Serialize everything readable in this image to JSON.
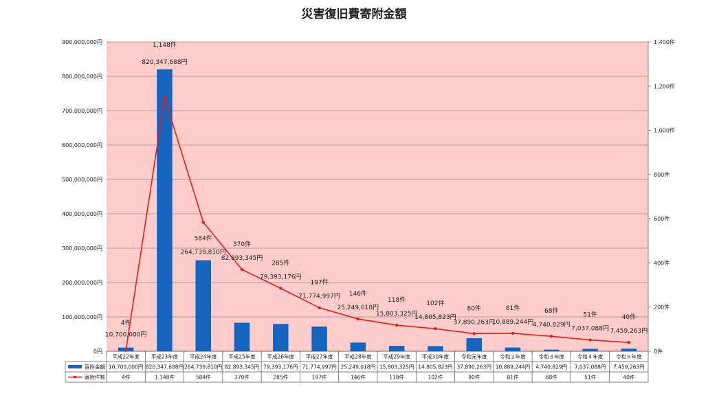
{
  "chart_data": {
    "type": "bar",
    "title": "災害復旧費寄附金額",
    "categories": [
      "平成22年度",
      "平成23年度",
      "平成24年度",
      "平成25年度",
      "平成26年度",
      "平成27年度",
      "平成28年度",
      "平成29年度",
      "平成30年度",
      "令和元年度",
      "令和２年度",
      "令和３年度",
      "令和４年度",
      "令和５年度"
    ],
    "series": [
      {
        "name": "寄附金額",
        "axis": "left",
        "kind": "bar",
        "color": "#1565c0",
        "values": [
          10700000,
          820347688,
          264739810,
          82893345,
          79393176,
          71774997,
          25249018,
          15803325,
          14805823,
          37890263,
          10889244,
          4740829,
          7037088,
          7459263
        ],
        "labels": [
          "10,700,000円",
          "820,347,688円",
          "264,739,810円",
          "82,893,345円",
          "79,393,176円",
          "71,774,997円",
          "25,249,018円",
          "15,803,325円",
          "14,805,823円",
          "37,890,263円",
          "10,889,244円",
          "4,740,829円",
          "7,037,088円",
          "7,459,263円"
        ],
        "table_labels": [
          "10,700,000円",
          "820,347,688円",
          "264,739,810円",
          "82,893,345円",
          "79,393,176円",
          "71,774,997円",
          "25,249,018円",
          "15,803,325円",
          "14,805,823円",
          "37,890,263円",
          "10,889,244円",
          "4,740,829円",
          "7,037,088円",
          "7,459,263円"
        ]
      },
      {
        "name": "寄附件数",
        "axis": "right",
        "kind": "line",
        "color": "#e0201a",
        "values": [
          4,
          1148,
          584,
          370,
          285,
          197,
          146,
          118,
          102,
          80,
          81,
          68,
          51,
          40
        ],
        "labels": [
          "4件",
          "1,148件",
          "584件",
          "370件",
          "285件",
          "197件",
          "146件",
          "118件",
          "102件",
          "80件",
          "81件",
          "68件",
          "51件",
          "40件"
        ],
        "table_labels": [
          "4件",
          "1,148件",
          "584件",
          "370件",
          "285件",
          "197件",
          "146件",
          "118件",
          "102件",
          "80件",
          "81件",
          "68件",
          "51件",
          "40件"
        ]
      }
    ],
    "y_left": {
      "min": 0,
      "max": 900000000,
      "ticks": [
        0,
        100000000,
        200000000,
        300000000,
        400000000,
        500000000,
        600000000,
        700000000,
        800000000,
        900000000
      ],
      "tick_labels": [
        "0円",
        "100,000,000円",
        "200,000,000円",
        "300,000,000円",
        "400,000,000円",
        "500,000,000円",
        "600,000,000円",
        "700,000,000円",
        "800,000,000円",
        "900,000,000円"
      ]
    },
    "y_right": {
      "min": 0,
      "max": 1400,
      "ticks": [
        0,
        200,
        400,
        600,
        800,
        1000,
        1200,
        1400
      ],
      "tick_labels": [
        "0件",
        "200件",
        "400件",
        "600件",
        "800件",
        "1,000件",
        "1,200件",
        "1,400件"
      ]
    },
    "grid": true,
    "data_table": true,
    "colors": {
      "plot_bg": "#ffcccc",
      "grid": "#b09a9a",
      "bar": "#1565c0",
      "line": "#e0201a"
    }
  }
}
